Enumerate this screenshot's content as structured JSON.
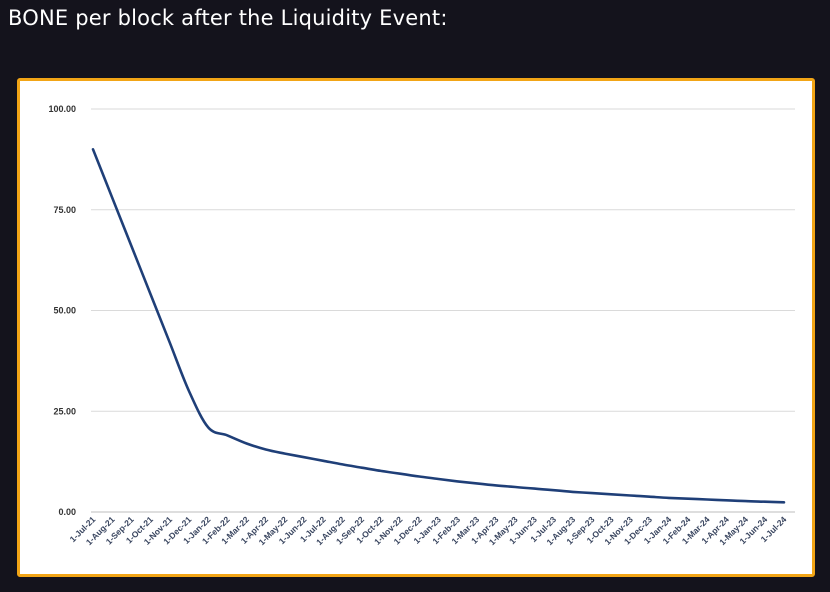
{
  "page": {
    "title": "BONE per block after the Liquidity Event:"
  },
  "chart_data": {
    "type": "line",
    "title": "",
    "xlabel": "",
    "ylabel": "",
    "ylim": [
      0,
      100
    ],
    "yticks": [
      "0.00",
      "25.00",
      "50.00",
      "75.00",
      "100.00"
    ],
    "x": [
      "1-Jul-21",
      "1-Aug-21",
      "1-Sep-21",
      "1-Oct-21",
      "1-Nov-21",
      "1-Dec-21",
      "1-Jan-22",
      "1-Feb-22",
      "1-Mar-22",
      "1-Apr-22",
      "1-May-22",
      "1-Jun-22",
      "1-Jul-22",
      "1-Aug-22",
      "1-Sep-22",
      "1-Oct-22",
      "1-Nov-22",
      "1-Dec-22",
      "1-Jan-23",
      "1-Feb-23",
      "1-Mar-23",
      "1-Apr-23",
      "1-May-23",
      "1-Jun-23",
      "1-Jul-23",
      "1-Aug-23",
      "1-Sep-23",
      "1-Oct-23",
      "1-Nov-23",
      "1-Dec-23",
      "1-Jan-24",
      "1-Feb-24",
      "1-Mar-24",
      "1-Apr-24",
      "1-May-24",
      "1-Jun-24",
      "1-Jul-24"
    ],
    "series": [
      {
        "values": [
          90,
          78,
          66,
          54,
          42,
          30,
          21,
          19,
          17,
          15.5,
          14.5,
          13.6,
          12.7,
          11.8,
          11,
          10.2,
          9.5,
          8.8,
          8.2,
          7.6,
          7.1,
          6.6,
          6.2,
          5.8,
          5.4,
          5.0,
          4.7,
          4.4,
          4.1,
          3.8,
          3.5,
          3.3,
          3.1,
          2.9,
          2.7,
          2.55,
          2.4
        ]
      }
    ],
    "grid": true,
    "line_color": "#1f3f78",
    "grid_color": "#dadada"
  },
  "colors": {
    "background": "#14131c",
    "frame_border": "#f2a516",
    "plot_bg": "#ffffff"
  }
}
